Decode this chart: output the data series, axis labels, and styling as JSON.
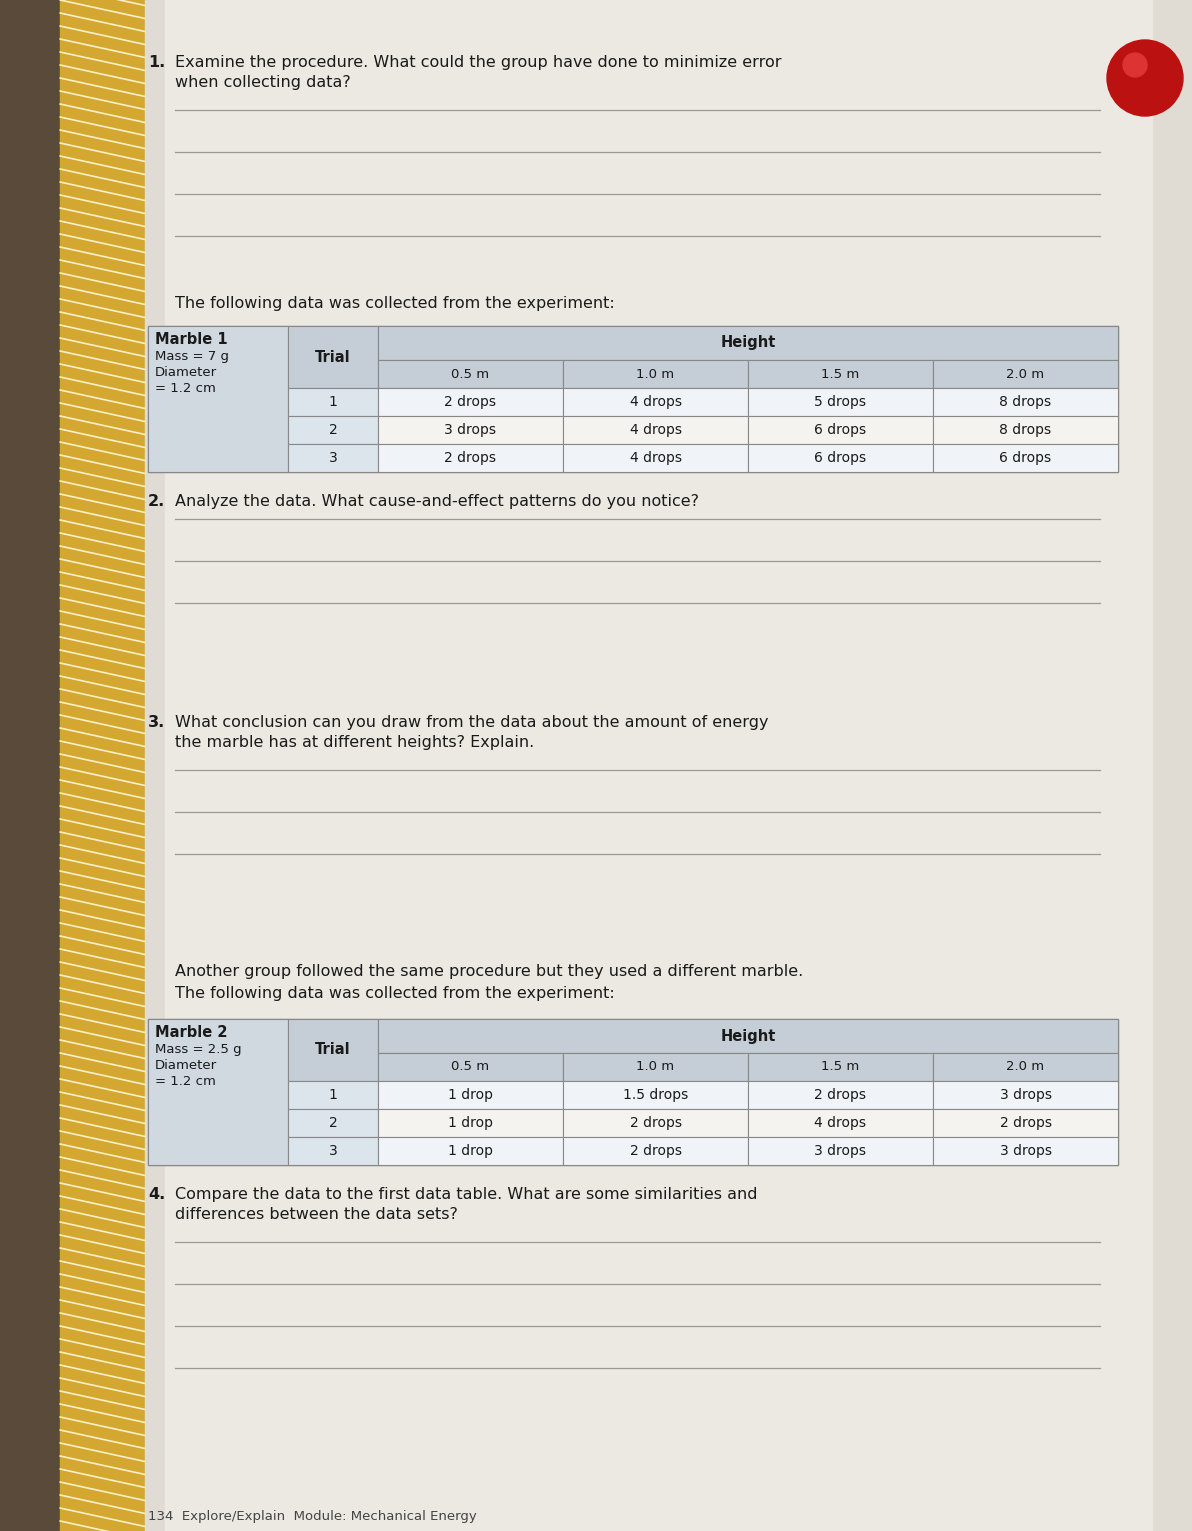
{
  "page_bg_left": "#b0a898",
  "page_bg_right": "#d8d4cc",
  "paper_color": "#e8e5de",
  "stripe_gold": "#d4a830",
  "stripe_white": "#f5f0e0",
  "q1_num": "1.",
  "q1_line1": "Examine the procedure. What could the group have done to minimize error",
  "q1_line2": "when collecting data?",
  "q1_lines": 4,
  "following_text1": "The following data was collected from the experiment:",
  "table1_marble_name": "Marble 1",
  "table1_marble_mass": "Mass = 7 g",
  "table1_marble_diam1": "Diameter",
  "table1_marble_diam2": "= 1.2 cm",
  "table1_col_trial": "Trial",
  "table1_col_height": "Height",
  "table1_heights": [
    "0.5 m",
    "1.0 m",
    "1.5 m",
    "2.0 m"
  ],
  "table1_rows": [
    [
      "1",
      "2 drops",
      "4 drops",
      "5 drops",
      "8 drops"
    ],
    [
      "2",
      "3 drops",
      "4 drops",
      "6 drops",
      "8 drops"
    ],
    [
      "3",
      "2 drops",
      "4 drops",
      "6 drops",
      "6 drops"
    ]
  ],
  "q2_num": "2.",
  "q2_text": "Analyze the data. What cause-and-effect patterns do you notice?",
  "q2_lines": 3,
  "q3_num": "3.",
  "q3_line1": "What conclusion can you draw from the data about the amount of energy",
  "q3_line2": "the marble has at different heights? Explain.",
  "q3_lines": 3,
  "another1": "Another group followed the same procedure but they used a different marble.",
  "another2": "The following data was collected from the experiment:",
  "table2_marble_name": "Marble 2",
  "table2_marble_mass": "Mass = 2.5 g",
  "table2_marble_diam1": "Diameter",
  "table2_marble_diam2": "= 1.2 cm",
  "table2_col_trial": "Trial",
  "table2_col_height": "Height",
  "table2_heights": [
    "0.5 m",
    "1.0 m",
    "1.5 m",
    "2.0 m"
  ],
  "table2_rows": [
    [
      "1",
      "1 drop",
      "1.5 drops",
      "2 drops",
      "3 drops"
    ],
    [
      "2",
      "1 drop",
      "2 drops",
      "4 drops",
      "2 drops"
    ],
    [
      "3",
      "1 drop",
      "2 drops",
      "3 drops",
      "3 drops"
    ]
  ],
  "q4_num": "4.",
  "q4_line1": "Compare the data to the first data table. What are some similarities and",
  "q4_line2": "differences between the data sets?",
  "q4_lines": 4,
  "footer_text": "134  Explore/Explain  Module: Mechanical Energy",
  "header_cell_color": "#c5cdd6",
  "marble_cell_color": "#d0d8e0",
  "table_border": "#888888",
  "red_circle_color": "#bb1111",
  "text_color": "#1a1a1a"
}
